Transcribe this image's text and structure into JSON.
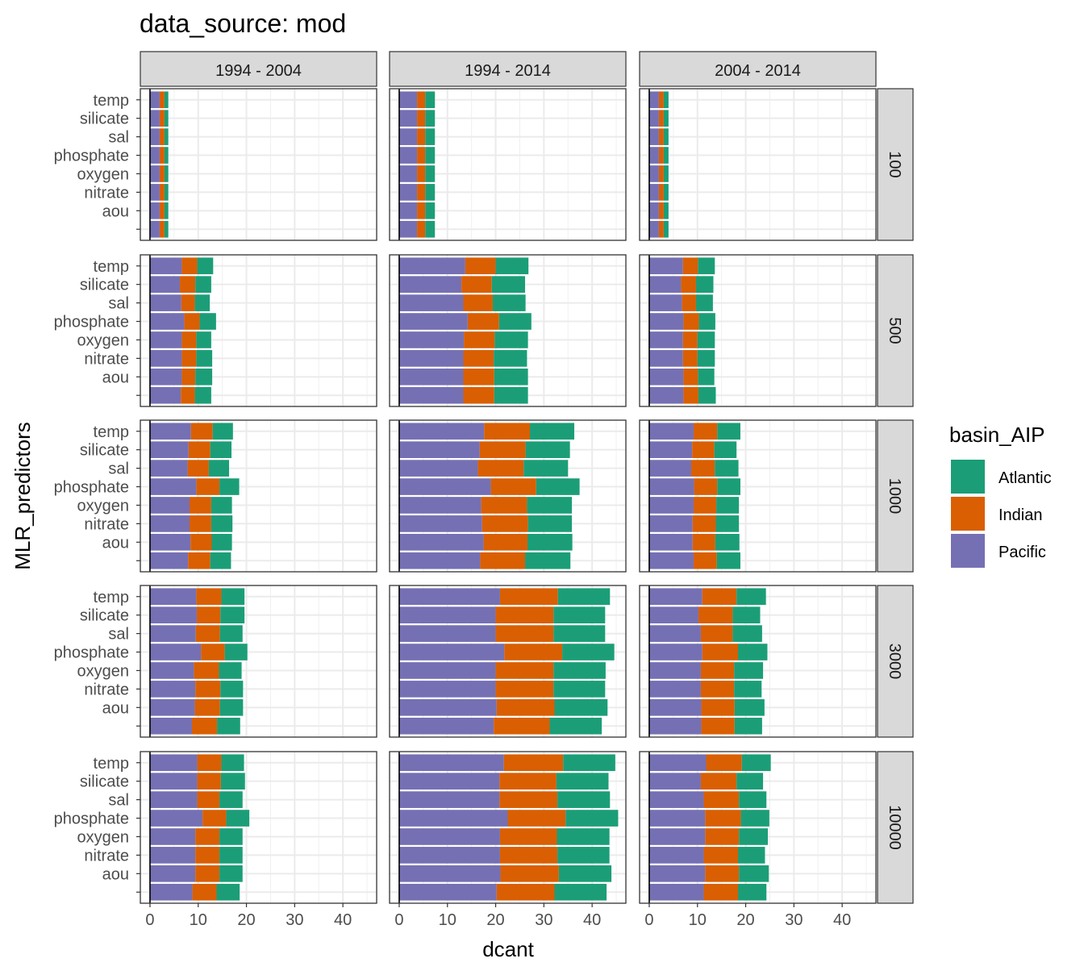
{
  "chart_data": {
    "type": "bar",
    "orientation": "horizontal",
    "stacked": true,
    "title": "data_source: mod",
    "xlabel": "dcant",
    "ylabel": "MLR_predictors",
    "xlim": [
      -2,
      47
    ],
    "xticks": [
      0,
      10,
      20,
      30,
      40
    ],
    "grid": true,
    "legend": {
      "title": "basin_AIP",
      "position": "right",
      "entries": [
        {
          "name": "Atlantic",
          "color": "#1b9e77"
        },
        {
          "name": "Indian",
          "color": "#d95f02"
        },
        {
          "name": "Pacific",
          "color": "#7570b3"
        }
      ]
    },
    "stack_order": [
      "Pacific",
      "Indian",
      "Atlantic"
    ],
    "categories": [
      "temp",
      "silicate",
      "sal",
      "phosphate",
      "oxygen",
      "nitrate",
      "aou",
      ""
    ],
    "col_facets": [
      "1994 - 2004",
      "1994 - 2014",
      "2004 - 2014"
    ],
    "row_facets": [
      "100",
      "500",
      "1000",
      "3000",
      "10000"
    ],
    "panels": [
      {
        "row": "100",
        "col": "1994 - 2004",
        "Pacific": [
          2.0,
          2.0,
          2.0,
          2.0,
          2.0,
          2.0,
          2.0,
          2.0
        ],
        "Indian": [
          1.0,
          1.0,
          1.0,
          1.0,
          1.0,
          1.0,
          1.0,
          1.0
        ],
        "Atlantic": [
          0.8,
          0.8,
          0.8,
          0.8,
          0.8,
          0.8,
          0.8,
          0.8
        ]
      },
      {
        "row": "100",
        "col": "1994 - 2014",
        "Pacific": [
          3.7,
          3.7,
          3.7,
          3.7,
          3.7,
          3.7,
          3.7,
          3.7
        ],
        "Indian": [
          1.7,
          1.7,
          1.7,
          1.7,
          1.7,
          1.7,
          1.7,
          1.7
        ],
        "Atlantic": [
          2.0,
          2.0,
          2.0,
          2.0,
          2.0,
          2.0,
          2.0,
          2.0
        ]
      },
      {
        "row": "100",
        "col": "2004 - 2014",
        "Pacific": [
          2.0,
          2.0,
          2.0,
          2.0,
          2.0,
          2.0,
          2.0,
          2.0
        ],
        "Indian": [
          1.0,
          1.0,
          1.0,
          1.0,
          1.0,
          1.0,
          1.0,
          1.0
        ],
        "Atlantic": [
          1.0,
          1.0,
          1.0,
          1.0,
          1.0,
          1.0,
          1.0,
          1.0
        ]
      },
      {
        "row": "500",
        "col": "1994 - 2004",
        "Pacific": [
          6.6,
          6.2,
          6.5,
          7.1,
          6.6,
          6.6,
          6.6,
          6.4
        ],
        "Indian": [
          3.2,
          3.2,
          2.8,
          3.2,
          3.0,
          3.0,
          2.8,
          2.9
        ],
        "Atlantic": [
          3.3,
          3.3,
          3.1,
          3.4,
          3.1,
          3.3,
          3.5,
          3.4
        ]
      },
      {
        "row": "500",
        "col": "1994 - 2014",
        "Pacific": [
          13.7,
          12.9,
          13.3,
          14.2,
          13.4,
          13.3,
          13.3,
          13.3
        ],
        "Indian": [
          6.3,
          6.3,
          6.1,
          6.5,
          6.4,
          6.3,
          6.4,
          6.4
        ],
        "Atlantic": [
          6.8,
          6.9,
          6.8,
          6.7,
          6.9,
          6.9,
          7.0,
          7.0
        ]
      },
      {
        "row": "500",
        "col": "2004 - 2014",
        "Pacific": [
          7.0,
          6.6,
          6.8,
          7.1,
          7.0,
          7.0,
          7.1,
          7.1
        ],
        "Indian": [
          3.1,
          3.1,
          2.9,
          3.2,
          3.0,
          3.0,
          3.0,
          3.1
        ],
        "Atlantic": [
          3.5,
          3.6,
          3.5,
          3.4,
          3.6,
          3.6,
          3.4,
          3.6
        ]
      },
      {
        "row": "1000",
        "col": "1994 - 2004",
        "Pacific": [
          8.5,
          8.0,
          7.8,
          9.6,
          8.2,
          8.2,
          8.4,
          7.9
        ],
        "Indian": [
          4.5,
          4.5,
          4.4,
          4.8,
          4.5,
          4.5,
          4.4,
          4.6
        ],
        "Atlantic": [
          4.2,
          4.4,
          4.2,
          4.1,
          4.3,
          4.4,
          4.2,
          4.3
        ]
      },
      {
        "row": "1000",
        "col": "1994 - 2014",
        "Pacific": [
          17.6,
          16.7,
          16.3,
          19.0,
          17.0,
          17.2,
          17.5,
          16.8
        ],
        "Indian": [
          9.5,
          9.5,
          9.5,
          9.4,
          9.5,
          9.5,
          9.1,
          9.3
        ],
        "Atlantic": [
          9.2,
          9.2,
          9.2,
          9.0,
          9.3,
          9.1,
          9.3,
          9.4
        ]
      },
      {
        "row": "1000",
        "col": "2004 - 2014",
        "Pacific": [
          9.2,
          8.9,
          8.7,
          9.3,
          9.2,
          9.0,
          9.0,
          9.2
        ],
        "Indian": [
          4.9,
          4.6,
          4.9,
          4.8,
          4.7,
          4.8,
          4.7,
          4.8
        ],
        "Atlantic": [
          4.8,
          4.6,
          4.9,
          4.8,
          4.7,
          4.8,
          5.0,
          4.9
        ]
      },
      {
        "row": "3000",
        "col": "1994 - 2004",
        "Pacific": [
          9.6,
          9.7,
          9.5,
          10.6,
          9.1,
          9.4,
          9.3,
          8.7
        ],
        "Indian": [
          5.2,
          4.9,
          5.0,
          4.9,
          5.2,
          5.2,
          5.2,
          5.2
        ],
        "Atlantic": [
          4.8,
          5.0,
          4.7,
          4.7,
          4.7,
          4.7,
          4.8,
          4.8
        ]
      },
      {
        "row": "3000",
        "col": "1994 - 2014",
        "Pacific": [
          20.9,
          20.0,
          20.0,
          21.8,
          20.0,
          20.0,
          20.2,
          19.6
        ],
        "Indian": [
          12.0,
          12.0,
          12.0,
          12.0,
          12.0,
          12.0,
          12.0,
          11.6
        ],
        "Atlantic": [
          10.8,
          10.7,
          10.7,
          10.8,
          10.8,
          10.7,
          11.0,
          10.8
        ]
      },
      {
        "row": "3000",
        "col": "2004 - 2014",
        "Pacific": [
          11.0,
          10.2,
          10.7,
          11.0,
          10.7,
          10.7,
          10.8,
          10.8
        ],
        "Indian": [
          7.1,
          7.1,
          6.6,
          7.4,
          6.9,
          6.9,
          6.9,
          6.9
        ],
        "Atlantic": [
          6.1,
          5.7,
          6.1,
          6.1,
          6.0,
          5.7,
          6.2,
          5.7
        ]
      },
      {
        "row": "10000",
        "col": "1994 - 2004",
        "Pacific": [
          9.8,
          9.8,
          9.8,
          10.9,
          9.4,
          9.4,
          9.4,
          8.8
        ],
        "Indian": [
          5.0,
          4.9,
          4.6,
          4.9,
          5.0,
          5.0,
          5.0,
          5.0
        ],
        "Atlantic": [
          4.7,
          5.0,
          4.8,
          4.8,
          4.8,
          4.8,
          4.8,
          4.8
        ]
      },
      {
        "row": "10000",
        "col": "1994 - 2014",
        "Pacific": [
          21.7,
          20.8,
          20.8,
          22.5,
          20.9,
          20.9,
          21.0,
          20.2
        ],
        "Indian": [
          12.3,
          11.8,
          12.0,
          12.0,
          11.8,
          11.9,
          12.1,
          12.0
        ],
        "Atlantic": [
          10.8,
          10.8,
          10.9,
          10.9,
          10.9,
          10.8,
          10.9,
          10.8
        ]
      },
      {
        "row": "10000",
        "col": "2004 - 2014",
        "Pacific": [
          11.8,
          10.7,
          11.3,
          11.6,
          11.6,
          11.3,
          11.6,
          11.3
        ],
        "Indian": [
          7.4,
          7.4,
          7.3,
          7.4,
          7.0,
          7.1,
          7.0,
          7.1
        ],
        "Atlantic": [
          6.0,
          5.5,
          5.7,
          5.9,
          6.0,
          5.6,
          6.2,
          5.9
        ]
      }
    ]
  }
}
